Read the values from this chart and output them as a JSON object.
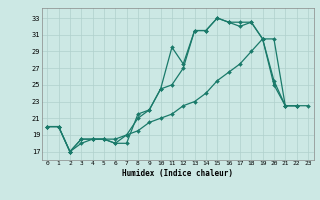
{
  "xlabel": "Humidex (Indice chaleur)",
  "bg_color": "#cce8e4",
  "grid_color": "#b0d0cc",
  "line_color": "#1a7a6a",
  "xlim": [
    -0.5,
    23.5
  ],
  "ylim": [
    16.0,
    34.2
  ],
  "xticks": [
    0,
    1,
    2,
    3,
    4,
    5,
    6,
    7,
    8,
    9,
    10,
    11,
    12,
    13,
    14,
    15,
    16,
    17,
    18,
    19,
    20,
    21,
    22,
    23
  ],
  "yticks": [
    17,
    19,
    21,
    23,
    25,
    27,
    29,
    31,
    33
  ],
  "line1_x": [
    0,
    1,
    2,
    3,
    4,
    5,
    6,
    7,
    8,
    9,
    10,
    11,
    12,
    13,
    14,
    15,
    16,
    17,
    18,
    19,
    20,
    21,
    22,
    23
  ],
  "line1_y": [
    20.0,
    20.0,
    17.0,
    18.0,
    18.5,
    18.5,
    18.0,
    18.0,
    21.5,
    22.0,
    24.5,
    29.5,
    27.5,
    31.5,
    31.5,
    33.0,
    32.5,
    32.5,
    32.5,
    30.5,
    25.0,
    22.5,
    22.5,
    null
  ],
  "line2_x": [
    0,
    1,
    2,
    3,
    4,
    5,
    6,
    7,
    8,
    9,
    10,
    11,
    12,
    13,
    14,
    15,
    16,
    17,
    18,
    19,
    20,
    21,
    22,
    23
  ],
  "line2_y": [
    20.0,
    20.0,
    17.0,
    18.5,
    18.5,
    18.5,
    18.0,
    19.0,
    21.0,
    22.0,
    24.5,
    25.0,
    27.0,
    31.5,
    31.5,
    33.0,
    32.5,
    32.0,
    32.5,
    30.5,
    25.5,
    22.5,
    22.5,
    null
  ],
  "line3_x": [
    0,
    1,
    2,
    3,
    4,
    5,
    6,
    7,
    8,
    9,
    10,
    11,
    12,
    13,
    14,
    15,
    16,
    17,
    18,
    19,
    20,
    21,
    22,
    23
  ],
  "line3_y": [
    20.0,
    20.0,
    17.0,
    18.5,
    18.5,
    18.5,
    18.5,
    19.0,
    19.5,
    20.5,
    21.0,
    21.5,
    22.5,
    23.0,
    24.0,
    25.5,
    26.5,
    27.5,
    29.0,
    30.5,
    30.5,
    22.5,
    22.5,
    22.5
  ]
}
